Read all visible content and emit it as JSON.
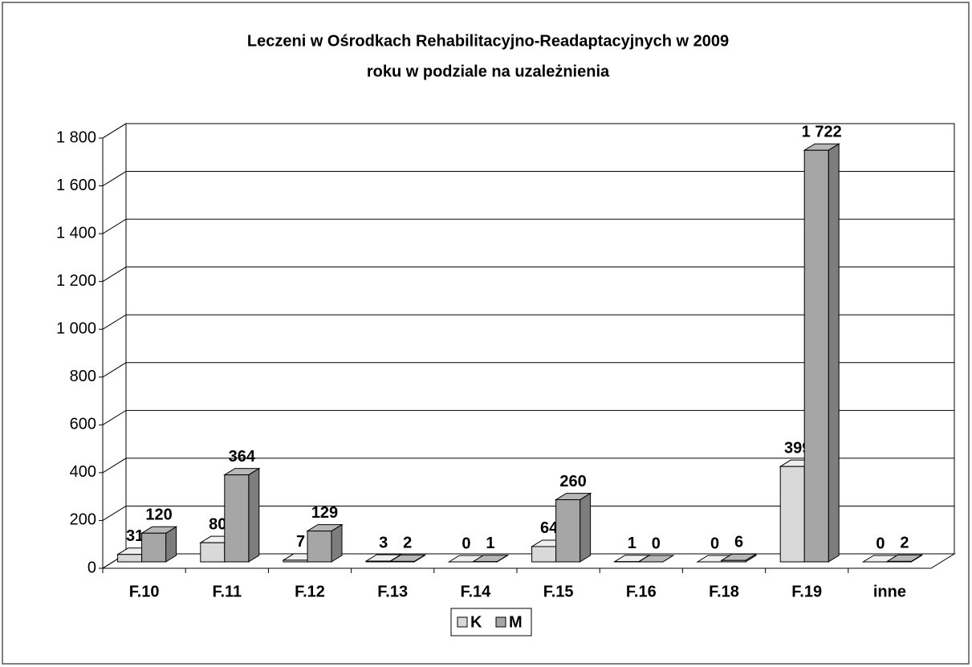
{
  "chart_data": {
    "type": "bar3d",
    "title": "Leczeni w Ośrodkach Rehabilitacyjno-Readaptacyjnych w 2009 roku w podziale na uzależnienia",
    "categories": [
      "F.10",
      "F.11",
      "F.12",
      "F.13",
      "F.14",
      "F.15",
      "F.16",
      "F.18",
      "F.19",
      "inne"
    ],
    "series": [
      {
        "name": "K",
        "color": "#d9d9d9",
        "values": [
          31,
          80,
          7,
          3,
          0,
          64,
          1,
          0,
          399,
          0
        ],
        "value_labels": [
          "31",
          "80",
          "7",
          "3",
          "0",
          "64",
          "1",
          "0",
          "399",
          "0"
        ]
      },
      {
        "name": "M",
        "color": "#a6a6a6",
        "values": [
          120,
          364,
          129,
          2,
          1,
          260,
          0,
          6,
          1722,
          2
        ],
        "value_labels": [
          "120",
          "364",
          "129",
          "2",
          "1",
          "260",
          "0",
          "6",
          "1 722",
          "2"
        ]
      }
    ],
    "ylim": [
      0,
      1800
    ],
    "yticks": [
      0,
      200,
      400,
      600,
      800,
      {
        "value": 1000,
        "label": "1 000"
      },
      {
        "value": 1200,
        "label": "1 200"
      },
      {
        "value": 1400,
        "label": "1 400"
      },
      {
        "value": 1600,
        "label": "1 600"
      },
      {
        "value": 1800,
        "label": "1 800"
      }
    ],
    "grid": true,
    "legend": "bottom"
  }
}
